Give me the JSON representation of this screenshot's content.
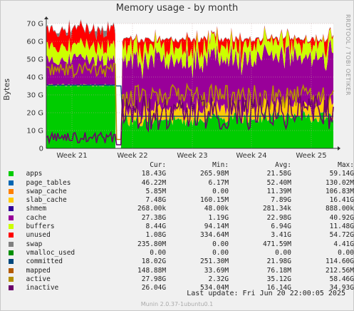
{
  "chart_data": {
    "type": "area",
    "title": "Memory usage - by month",
    "ylabel": "Bytes",
    "side_label": "RRDTOOL / TOBI OETIKER",
    "yticks": [
      "0",
      "10 G",
      "20 G",
      "30 G",
      "40 G",
      "50 G",
      "60 G",
      "70 G"
    ],
    "ylim": [
      0,
      70
    ],
    "xticks": [
      "Week 21",
      "Week 22",
      "Week 23",
      "Week 24",
      "Week 25"
    ],
    "grid": true,
    "series": [
      {
        "name": "apps",
        "color": "#00cc00"
      },
      {
        "name": "page_tables",
        "color": "#0066b3"
      },
      {
        "name": "swap_cache",
        "color": "#ff8000"
      },
      {
        "name": "slab_cache",
        "color": "#ffcc00"
      },
      {
        "name": "shmem",
        "color": "#330099"
      },
      {
        "name": "cache",
        "color": "#990099"
      },
      {
        "name": "buffers",
        "color": "#ccff00"
      },
      {
        "name": "unused",
        "color": "#ff0000"
      },
      {
        "name": "swap",
        "color": "#808080"
      },
      {
        "name": "vmalloc_used",
        "color": "#008f00"
      },
      {
        "name": "committed",
        "color": "#00487d"
      },
      {
        "name": "mapped",
        "color": "#b35a00"
      },
      {
        "name": "active",
        "color": "#b38f00"
      },
      {
        "name": "inactive",
        "color": "#6b006b"
      }
    ]
  },
  "legend": {
    "headers": [
      "Cur:",
      "Min:",
      "Avg:",
      "Max:"
    ],
    "rows": [
      {
        "name": "apps",
        "color": "#00cc00",
        "cur": "18.43G",
        "min": "265.98M",
        "avg": "21.58G",
        "max": "59.14G"
      },
      {
        "name": "page_tables",
        "color": "#0066b3",
        "cur": "46.22M",
        "min": "6.17M",
        "avg": "52.40M",
        "max": "130.02M"
      },
      {
        "name": "swap_cache",
        "color": "#ff8000",
        "cur": "5.85M",
        "min": "0.00",
        "avg": "11.39M",
        "max": "106.83M"
      },
      {
        "name": "slab_cache",
        "color": "#ffcc00",
        "cur": "7.48G",
        "min": "160.15M",
        "avg": "7.89G",
        "max": "16.41G"
      },
      {
        "name": "shmem",
        "color": "#330099",
        "cur": "268.00k",
        "min": "48.00k",
        "avg": "281.34k",
        "max": "888.00k"
      },
      {
        "name": "cache",
        "color": "#990099",
        "cur": "27.38G",
        "min": "1.19G",
        "avg": "22.98G",
        "max": "40.92G"
      },
      {
        "name": "buffers",
        "color": "#ccff00",
        "cur": "8.44G",
        "min": "94.14M",
        "avg": "6.94G",
        "max": "11.48G"
      },
      {
        "name": "unused",
        "color": "#ff0000",
        "cur": "1.08G",
        "min": "334.64M",
        "avg": "3.41G",
        "max": "54.72G"
      },
      {
        "name": "swap",
        "color": "#808080",
        "cur": "235.80M",
        "min": "0.00",
        "avg": "471.59M",
        "max": "4.41G"
      },
      {
        "name": "vmalloc_used",
        "color": "#008f00",
        "cur": "0.00",
        "min": "0.00",
        "avg": "0.00",
        "max": "0.00"
      },
      {
        "name": "committed",
        "color": "#00487d",
        "cur": "18.02G",
        "min": "251.30M",
        "avg": "21.98G",
        "max": "114.60G"
      },
      {
        "name": "mapped",
        "color": "#b35a00",
        "cur": "148.88M",
        "min": "33.69M",
        "avg": "76.18M",
        "max": "212.56M"
      },
      {
        "name": "active",
        "color": "#b38f00",
        "cur": "27.98G",
        "min": "2.32G",
        "avg": "35.12G",
        "max": "58.46G"
      },
      {
        "name": "inactive",
        "color": "#6b006b",
        "cur": "26.04G",
        "min": "534.04M",
        "avg": "16.14G",
        "max": "34.93G"
      }
    ]
  },
  "footer": {
    "last_update": "Last update: Fri Jun 20 22:00:05 2025",
    "munin": "Munin 2.0.37-1ubuntu0.1"
  }
}
